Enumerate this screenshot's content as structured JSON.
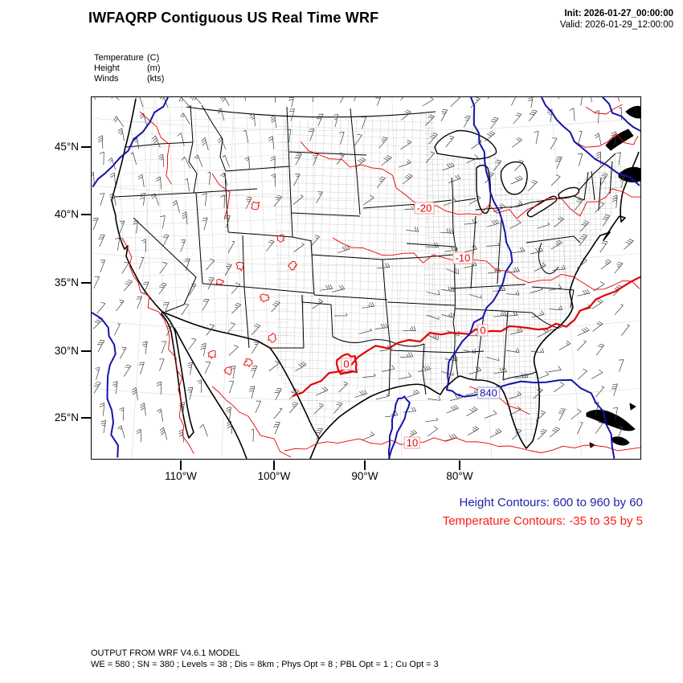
{
  "header": {
    "title": "IWFAQRP Contiguous US Real Time WRF",
    "init_label": "Init: 2026-01-27_00:00:00",
    "valid_label": "Valid: 2026-01-29_12:00:00"
  },
  "variables_legend": {
    "rows": [
      {
        "name": "Temperature",
        "unit": "(C)"
      },
      {
        "name": "Height",
        "unit": "(m)"
      },
      {
        "name": "Winds",
        "unit": "(kts)"
      }
    ]
  },
  "map": {
    "lat_ticks": [
      "45°N",
      "40°N",
      "35°N",
      "30°N",
      "25°N"
    ],
    "lon_ticks": [
      "110°W",
      "100°W",
      "90°W",
      "80°W"
    ],
    "contour_labels": {
      "temperature": [
        "-20",
        "-10",
        "0",
        "0",
        "10"
      ],
      "height": [
        "840"
      ]
    }
  },
  "contour_info": {
    "height": "Height Contours: 600 to 960 by 60",
    "temperature": "Temperature Contours: -35 to 35 by 5"
  },
  "footer": {
    "line1": "OUTPUT FROM WRF V4.6.1 MODEL",
    "line2": "WE = 580 ; SN = 380 ; Levels = 38 ; Dis = 8km ; Phys Opt = 8 ; PBL Opt = 1 ; Cu Opt = 3"
  },
  "colors": {
    "temperature_contour": "#e60000",
    "height_contour": "#1414aa",
    "temperature_text": "#ff1a1a",
    "height_text": "#2222aa",
    "coastline": "#000000",
    "county": "#a8a8a8",
    "wind_barb": "#3c3c3c"
  }
}
